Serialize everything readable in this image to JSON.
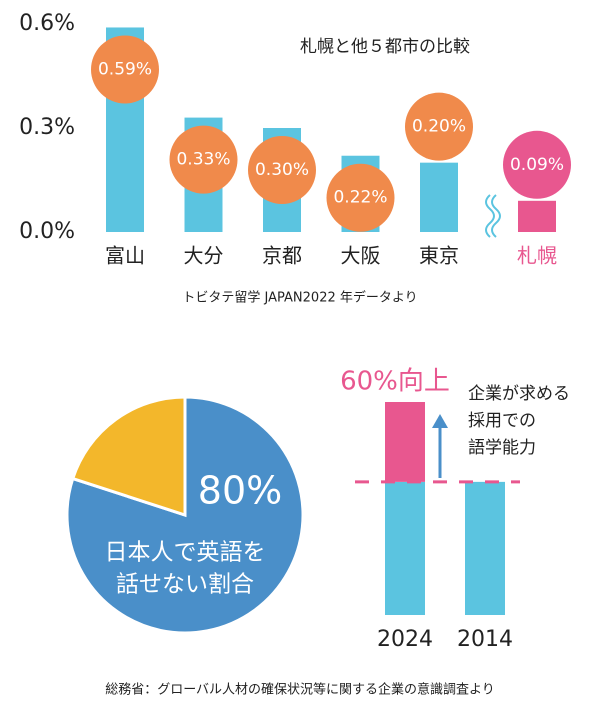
{
  "chart_data": [
    {
      "type": "bar",
      "title": "札幌と他５都市の比較",
      "categories": [
        "富山",
        "大分",
        "京都",
        "大阪",
        "東京",
        "札幌"
      ],
      "values": [
        0.59,
        0.33,
        0.3,
        0.22,
        0.2,
        0.09
      ],
      "value_labels": [
        "0.59%",
        "0.33%",
        "0.30%",
        "0.22%",
        "0.20%",
        "0.09%"
      ],
      "colors": [
        "#5bc4e0",
        "#5bc4e0",
        "#5bc4e0",
        "#5bc4e0",
        "#5bc4e0",
        "#e8578f"
      ],
      "label_colors": [
        "#f08a4b",
        "#f08a4b",
        "#f08a4b",
        "#f08a4b",
        "#f08a4b",
        "#e8578f"
      ],
      "category_colors": [
        "#222222",
        "#222222",
        "#222222",
        "#222222",
        "#222222",
        "#e8578f"
      ],
      "ylim": [
        0,
        0.6
      ],
      "yticks": [
        {
          "value": 0,
          "label": "0.0%"
        },
        {
          "value": 0.3,
          "label": "0.3%"
        },
        {
          "value": 0.6,
          "label": "0.6%"
        }
      ],
      "source": "トビタテ留学 JAPAN2022 年データより"
    },
    {
      "type": "pie",
      "values": [
        80,
        20
      ],
      "value_labels": [
        "80%",
        null
      ],
      "colors": [
        "#4a8fc9",
        "#f3b72b"
      ],
      "label": [
        "日本人で英語を",
        "話せない割合"
      ]
    },
    {
      "type": "stacked",
      "categories": [
        "2024",
        "2014"
      ],
      "series": [
        {
          "color": "#5bc4e0",
          "values": [
            100,
            100
          ]
        },
        {
          "color": "#e8578f",
          "values": [
            60,
            null
          ],
          "value_labels": [
            "60%向上",
            null
          ]
        }
      ],
      "ylim": [
        0,
        160
      ],
      "annotation": [
        "企業が求める",
        "採用での",
        "語学能力"
      ],
      "source": "総務省：グローバル人材の確保状況等に関する企業の意識調査より"
    }
  ]
}
